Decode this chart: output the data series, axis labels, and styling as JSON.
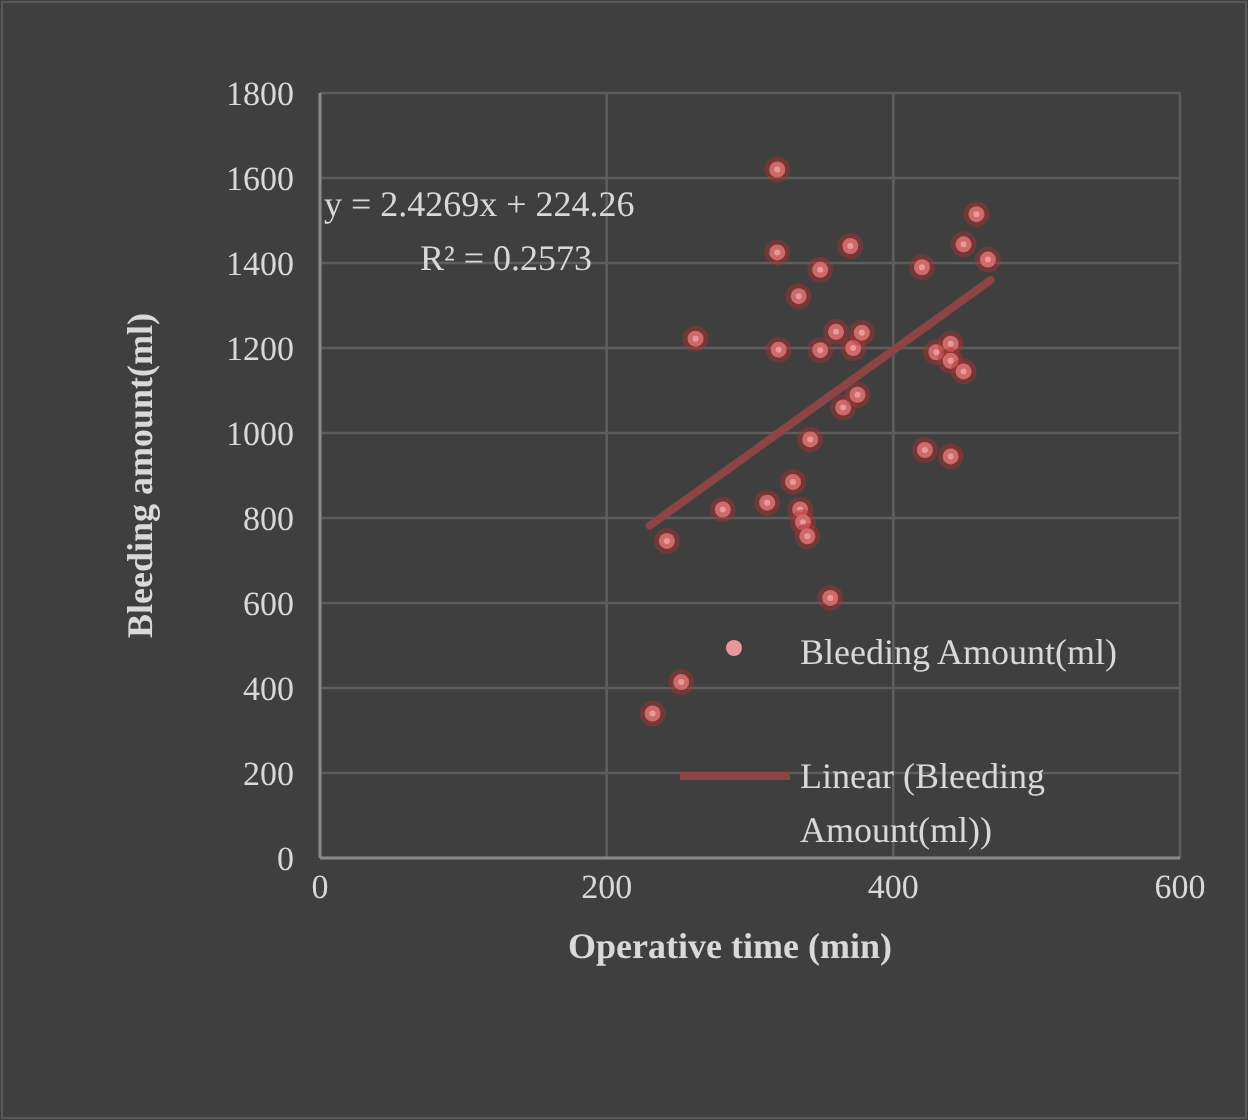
{
  "chart_data": {
    "type": "scatter",
    "xlabel": "Operative time (min)",
    "ylabel": "Bleeding amount(ml)",
    "xlim": [
      0,
      600
    ],
    "xticks": [
      0,
      200,
      400,
      600
    ],
    "ylim": [
      0,
      1800
    ],
    "yticks": [
      0,
      200,
      400,
      600,
      800,
      1000,
      1200,
      1400,
      1600,
      1800
    ],
    "grid": true,
    "legend": "right",
    "annotations": [
      "y = 2.4269x + 224.26",
      "R² = 0.2573"
    ],
    "series": [
      {
        "name": "Bleeding Amount(ml)",
        "color": "#e89a9a",
        "marker": "circle",
        "x": [
          232,
          242,
          252,
          262,
          281,
          312,
          319,
          319,
          320,
          330,
          334,
          335,
          337,
          340,
          342,
          349,
          349,
          356,
          360,
          365,
          370,
          372,
          375,
          378,
          420,
          422,
          430,
          440,
          440,
          440,
          449,
          449,
          458,
          466
        ],
        "values": [
          340,
          746,
          414,
          1222,
          820,
          836,
          1620,
          1425,
          1196,
          885,
          1322,
          820,
          790,
          757,
          985,
          1384,
          1195,
          612,
          1238,
          1060,
          1440,
          1200,
          1090,
          1236,
          1390,
          960,
          1190,
          1210,
          945,
          1170,
          1145,
          1444,
          1515,
          1408
        ]
      },
      {
        "name": "Linear (Bleeding Amount(ml))",
        "type": "line",
        "marker": "none",
        "color": "#8c4444",
        "x": [
          230,
          468
        ],
        "values": [
          782,
          1360
        ]
      }
    ]
  }
}
